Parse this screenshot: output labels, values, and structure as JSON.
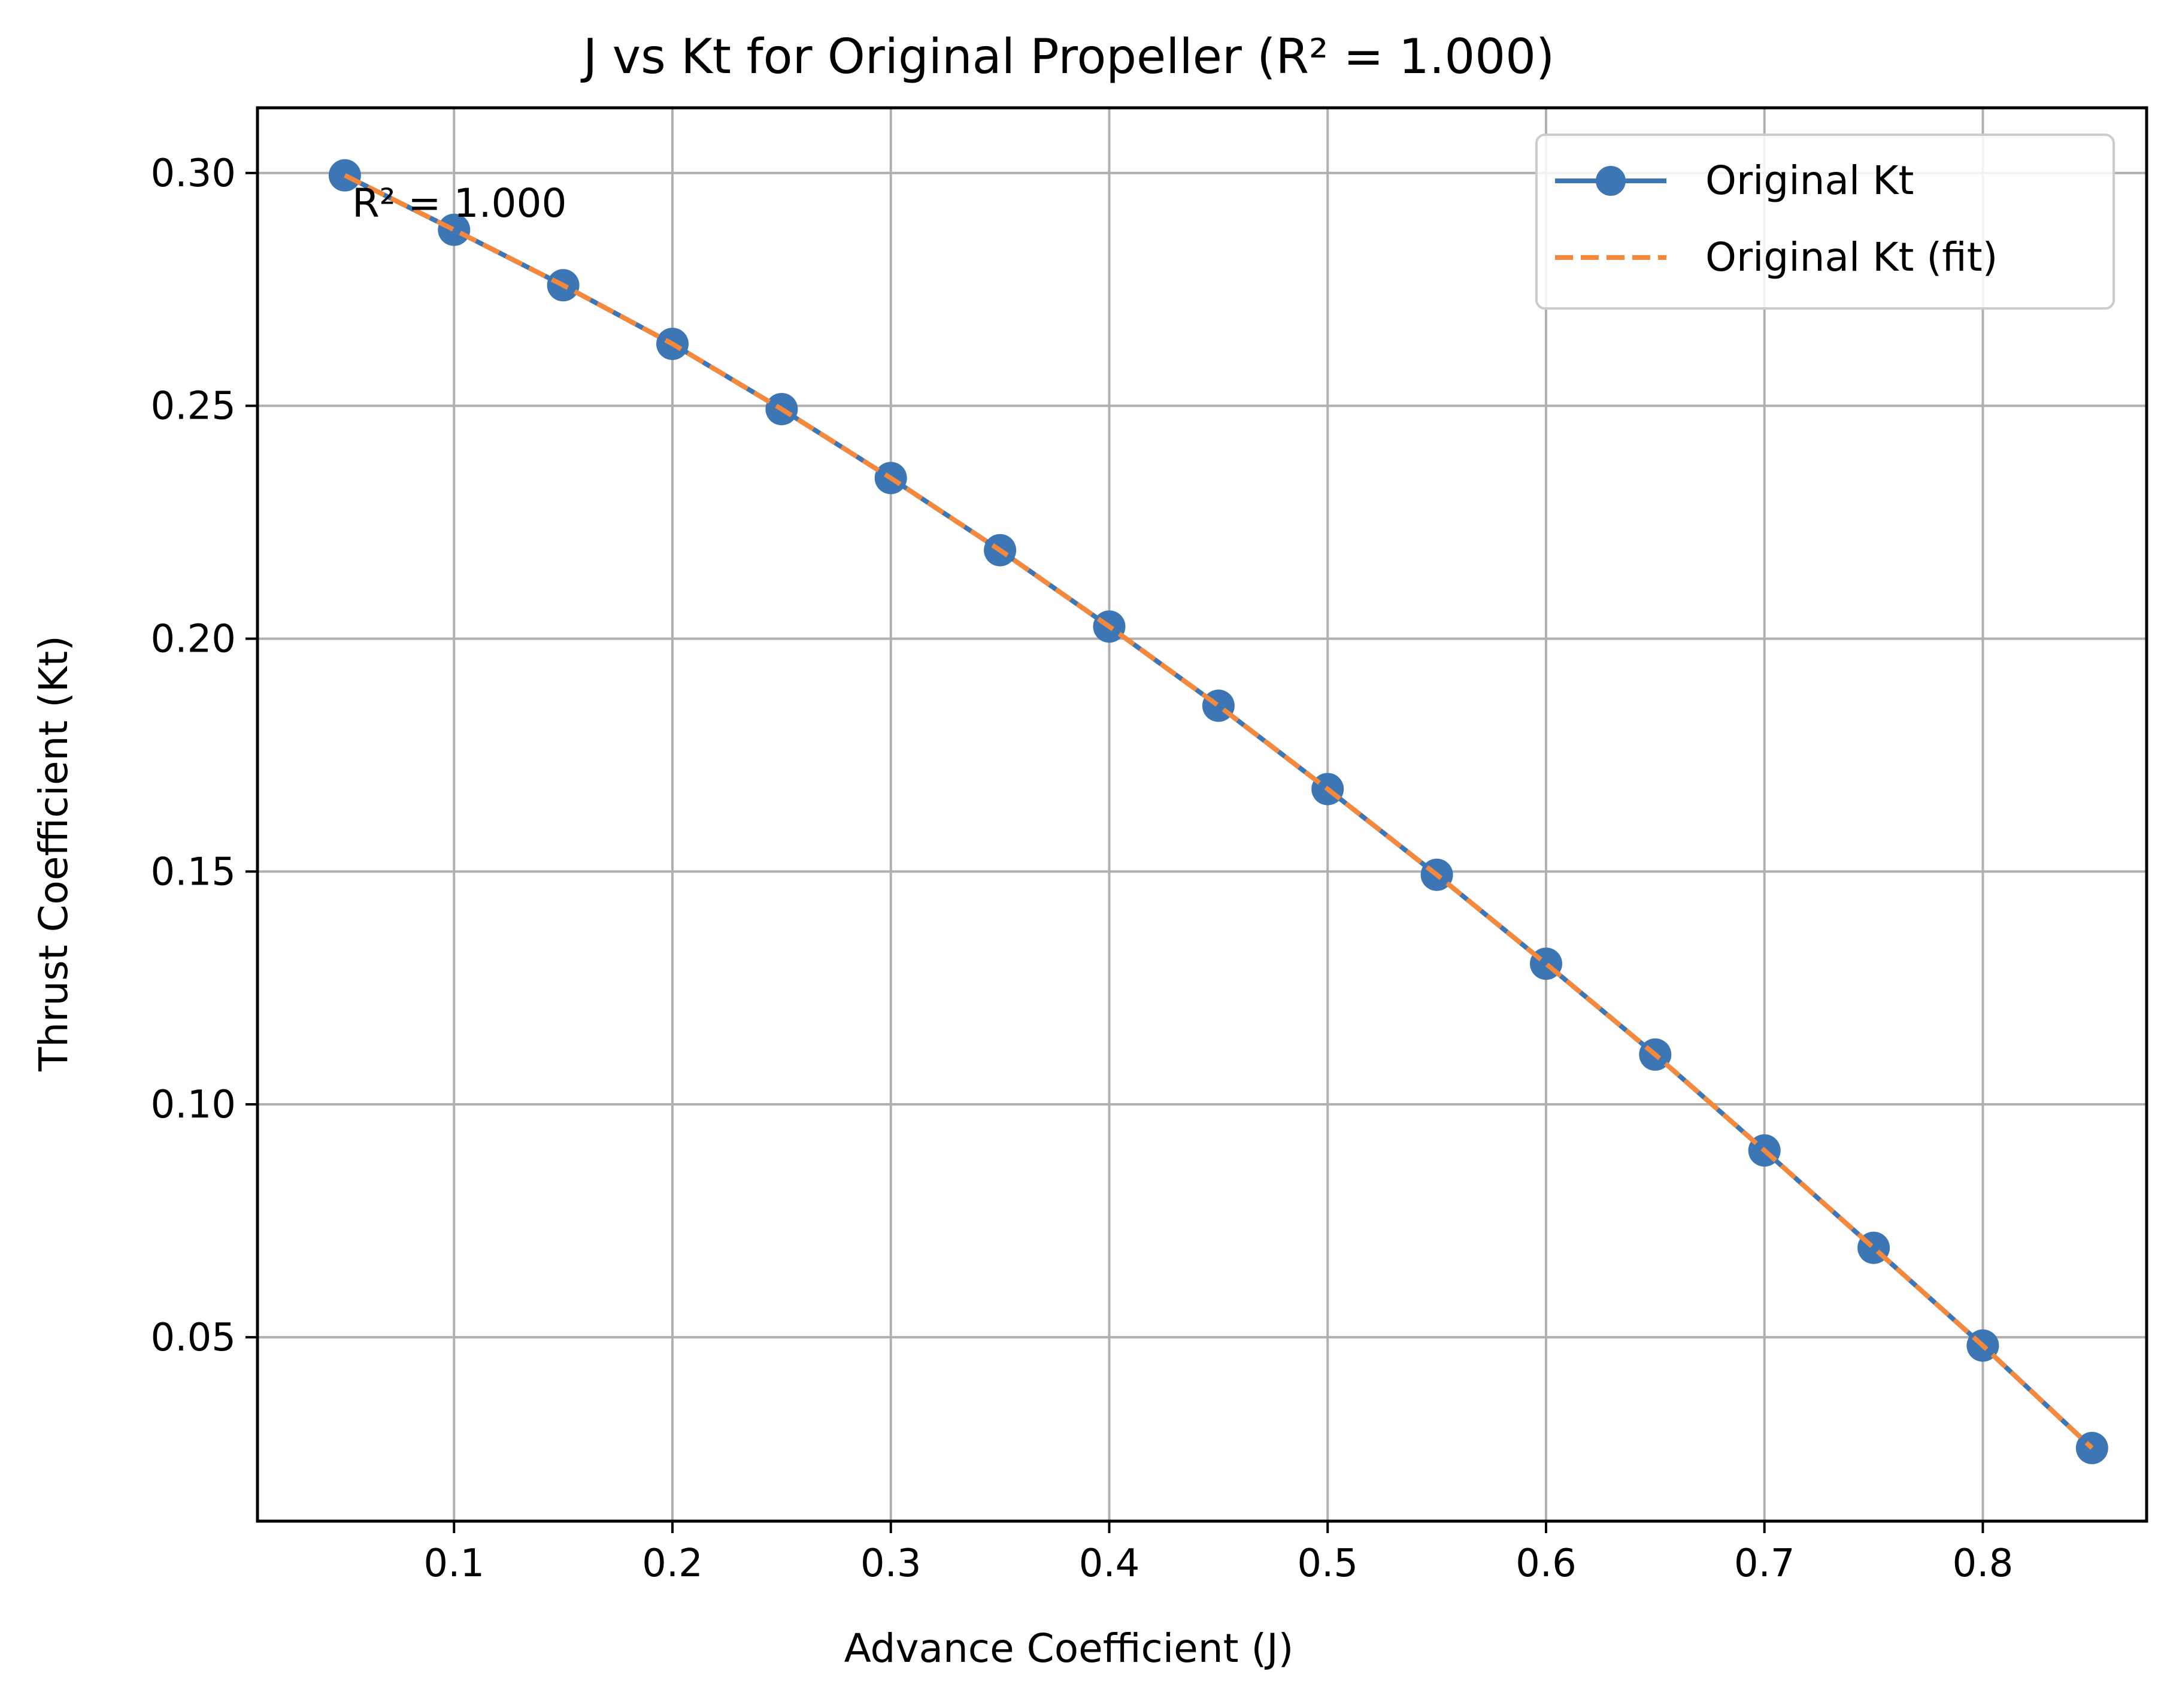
{
  "chart_data": {
    "type": "line",
    "title": "J vs Kt for Original Propeller (R² = 1.000)",
    "xlabel": "Advance Coefficient (J)",
    "ylabel": "Thrust Coefficient (Kt)",
    "xlim": [
      0.01,
      0.875
    ],
    "ylim": [
      0.0105,
      0.314
    ],
    "x_ticks": [
      0.1,
      0.2,
      0.3,
      0.4,
      0.5,
      0.6,
      0.7,
      0.8
    ],
    "x_tick_labels": [
      "0.1",
      "0.2",
      "0.3",
      "0.4",
      "0.5",
      "0.6",
      "0.7",
      "0.8"
    ],
    "y_ticks": [
      0.05,
      0.1,
      0.15,
      0.2,
      0.25,
      0.3
    ],
    "y_tick_labels": [
      "0.05",
      "0.10",
      "0.15",
      "0.20",
      "0.25",
      "0.30"
    ],
    "grid": true,
    "legend_position": "top-right",
    "annotation": "R² = 1.000",
    "x": [
      0.05,
      0.1,
      0.15,
      0.2,
      0.25,
      0.3,
      0.35,
      0.4,
      0.45,
      0.5,
      0.55,
      0.6,
      0.65,
      0.7,
      0.75,
      0.8,
      0.85
    ],
    "series": [
      {
        "name": "Original Kt",
        "style": "solid-with-markers",
        "color": "#3c76b4",
        "values": [
          0.2995,
          0.2878,
          0.2759,
          0.2633,
          0.2493,
          0.2345,
          0.219,
          0.2026,
          0.1856,
          0.1677,
          0.1493,
          0.1302,
          0.1107,
          0.0901,
          0.0692,
          0.0482,
          0.0262
        ]
      },
      {
        "name": "Original Kt (fit)",
        "style": "dashed",
        "color": "#f5883a",
        "values": [
          0.2995,
          0.2878,
          0.2759,
          0.2633,
          0.2493,
          0.2345,
          0.219,
          0.2026,
          0.1856,
          0.1677,
          0.1493,
          0.1302,
          0.1107,
          0.0901,
          0.0692,
          0.0482,
          0.0262
        ]
      }
    ]
  }
}
